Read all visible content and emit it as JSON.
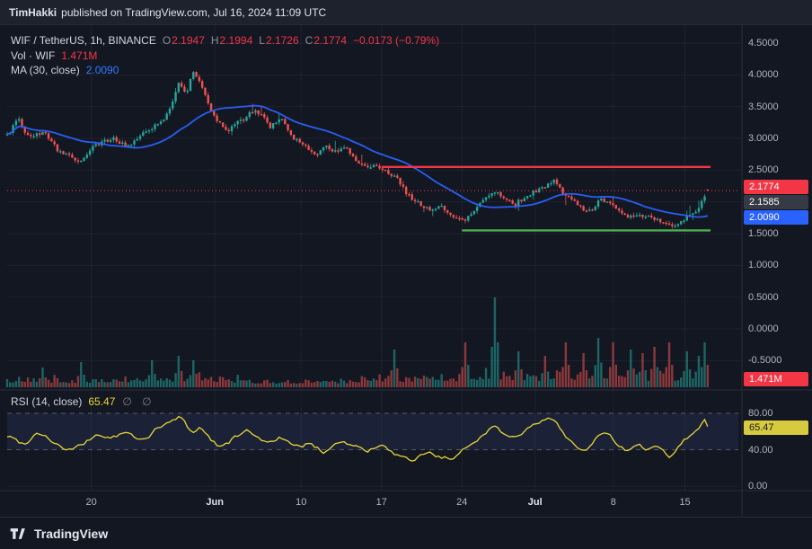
{
  "topbar": {
    "user": "TimHakki",
    "text": "published on TradingView.com, Jul 16, 2024 11:09 UTC"
  },
  "footer": {
    "brand": "TradingView"
  },
  "legend": {
    "symbol": "WIF / TetherUS, 1h, BINANCE",
    "ohlc": [
      {
        "k": "O",
        "v": "2.1947"
      },
      {
        "k": "H",
        "v": "2.1994"
      },
      {
        "k": "L",
        "v": "2.1726"
      },
      {
        "k": "C",
        "v": "2.1774"
      }
    ],
    "change": "−0.0173 (−0.79%)",
    "vol_label": "Vol · WIF",
    "vol_value": "1.471M",
    "ma_label": "MA (30, close)",
    "ma_value": "2.0090",
    "rsi_label": "RSI (14, close)",
    "rsi_value": "65.47",
    "rsi_icons": "∅ ∅"
  },
  "badges": {
    "last_price": "2.1774",
    "prev_price": "2.1585",
    "ma": "2.0090",
    "volume": "1.471M",
    "rsi": "65.47"
  },
  "axes": {
    "price_labels": [
      "4.5000",
      "4.0000",
      "3.5000",
      "3.0000",
      "2.5000",
      "2.0000",
      "1.5000",
      "1.0000",
      "0.5000",
      "0.0000",
      "-0.5000"
    ],
    "price_values": [
      4.5,
      4.0,
      3.5,
      3.0,
      2.5,
      2.0,
      1.5,
      1.0,
      0.5,
      0.0,
      -0.5
    ],
    "rsi_labels": [
      {
        "t": "80.00",
        "v": 80
      },
      {
        "t": "40.00",
        "v": 40
      },
      {
        "t": "0.00",
        "v": 0
      }
    ],
    "time_labels": [
      {
        "t": "20",
        "f": 0.115,
        "month": false
      },
      {
        "t": "Jun",
        "f": 0.284,
        "month": true
      },
      {
        "t": "10",
        "f": 0.402,
        "month": false
      },
      {
        "t": "17",
        "f": 0.512,
        "month": false
      },
      {
        "t": "24",
        "f": 0.622,
        "month": false
      },
      {
        "t": "Jul",
        "f": 0.722,
        "month": true
      },
      {
        "t": "8",
        "f": 0.829,
        "month": false
      },
      {
        "t": "15",
        "f": 0.927,
        "month": false
      }
    ]
  },
  "colors": {
    "up": "#26a69a",
    "down": "#ef5350",
    "accent_red": "#f23645",
    "ma_blue": "#2962ff",
    "support_green": "#4caf50",
    "rsi_yellow": "#e6d738",
    "badge_gray": "#363a45",
    "axis_text": "#b2b5be"
  },
  "chart_data": [
    {
      "type": "candlestick",
      "title": "WIF / TetherUS, 1h, BINANCE",
      "last_ohlc": {
        "open": 2.1947,
        "high": 2.1994,
        "low": 2.1726,
        "close": 2.1774,
        "change": -0.0173,
        "change_pct": -0.79
      },
      "ma": {
        "period": 30,
        "last": 2.009
      },
      "ylim": [
        -0.5,
        4.5
      ],
      "levels": {
        "resistance": {
          "price": 2.55,
          "from": 0.512,
          "to": 0.962
        },
        "support": {
          "price": 1.55,
          "from": 0.622,
          "to": 0.962
        },
        "price_line": 2.1774
      },
      "close_path_anchors": [
        [
          0,
          3.05
        ],
        [
          0.015,
          3.3
        ],
        [
          0.03,
          3.0
        ],
        [
          0.05,
          3.1
        ],
        [
          0.07,
          2.8
        ],
        [
          0.1,
          2.62
        ],
        [
          0.12,
          2.9
        ],
        [
          0.145,
          3.0
        ],
        [
          0.165,
          2.88
        ],
        [
          0.19,
          3.1
        ],
        [
          0.21,
          3.25
        ],
        [
          0.225,
          3.5
        ],
        [
          0.235,
          3.92
        ],
        [
          0.245,
          3.7
        ],
        [
          0.255,
          4.08
        ],
        [
          0.268,
          3.75
        ],
        [
          0.284,
          3.3
        ],
        [
          0.3,
          3.12
        ],
        [
          0.32,
          3.28
        ],
        [
          0.34,
          3.46
        ],
        [
          0.36,
          3.18
        ],
        [
          0.375,
          3.3
        ],
        [
          0.39,
          3.0
        ],
        [
          0.405,
          2.92
        ],
        [
          0.42,
          2.72
        ],
        [
          0.435,
          2.9
        ],
        [
          0.45,
          2.78
        ],
        [
          0.465,
          2.86
        ],
        [
          0.48,
          2.6
        ],
        [
          0.5,
          2.56
        ],
        [
          0.515,
          2.48
        ],
        [
          0.53,
          2.42
        ],
        [
          0.545,
          2.15
        ],
        [
          0.56,
          2.0
        ],
        [
          0.578,
          1.88
        ],
        [
          0.595,
          1.92
        ],
        [
          0.61,
          1.78
        ],
        [
          0.625,
          1.7
        ],
        [
          0.64,
          1.88
        ],
        [
          0.655,
          2.05
        ],
        [
          0.668,
          2.18
        ],
        [
          0.682,
          2.02
        ],
        [
          0.695,
          1.95
        ],
        [
          0.71,
          2.12
        ],
        [
          0.722,
          2.16
        ],
        [
          0.737,
          2.26
        ],
        [
          0.748,
          2.32
        ],
        [
          0.76,
          2.16
        ],
        [
          0.775,
          2.0
        ],
        [
          0.79,
          1.88
        ],
        [
          0.8,
          1.86
        ],
        [
          0.812,
          2.05
        ],
        [
          0.825,
          1.98
        ],
        [
          0.838,
          1.82
        ],
        [
          0.852,
          1.76
        ],
        [
          0.868,
          1.8
        ],
        [
          0.882,
          1.73
        ],
        [
          0.9,
          1.67
        ],
        [
          0.912,
          1.6
        ],
        [
          0.925,
          1.72
        ],
        [
          0.937,
          1.8
        ],
        [
          0.948,
          1.95
        ],
        [
          0.955,
          2.08
        ],
        [
          0.958,
          2.18
        ]
      ]
    },
    {
      "type": "bar",
      "name": "Volume WIF",
      "last_value": "1.471M",
      "envelope_anchors": [
        [
          0,
          0.18
        ],
        [
          0.1,
          0.15
        ],
        [
          0.2,
          0.2
        ],
        [
          0.26,
          0.22
        ],
        [
          0.35,
          0.12
        ],
        [
          0.45,
          0.12
        ],
        [
          0.52,
          0.2
        ],
        [
          0.6,
          0.18
        ],
        [
          0.665,
          0.3
        ],
        [
          0.72,
          0.2
        ],
        [
          0.78,
          0.25
        ],
        [
          0.85,
          0.25
        ],
        [
          0.92,
          0.22
        ],
        [
          0.958,
          0.3
        ]
      ],
      "spikes": [
        [
          0.05,
          0.22
        ],
        [
          0.1,
          0.28
        ],
        [
          0.2,
          0.3
        ],
        [
          0.235,
          0.35
        ],
        [
          0.255,
          0.3
        ],
        [
          0.53,
          0.42
        ],
        [
          0.625,
          0.5
        ],
        [
          0.665,
          1.0
        ],
        [
          0.7,
          0.4
        ],
        [
          0.735,
          0.35
        ],
        [
          0.765,
          0.5
        ],
        [
          0.79,
          0.38
        ],
        [
          0.81,
          0.55
        ],
        [
          0.83,
          0.5
        ],
        [
          0.852,
          0.42
        ],
        [
          0.87,
          0.38
        ],
        [
          0.887,
          0.45
        ],
        [
          0.905,
          0.5
        ],
        [
          0.93,
          0.4
        ],
        [
          0.945,
          0.35
        ],
        [
          0.955,
          0.5
        ]
      ]
    },
    {
      "type": "line",
      "name": "RSI (14, close)",
      "last_value": 65.47,
      "bands": [
        40,
        80
      ],
      "ylim": [
        0,
        100
      ],
      "anchors": [
        [
          0,
          55
        ],
        [
          0.02,
          45
        ],
        [
          0.04,
          62
        ],
        [
          0.06,
          48
        ],
        [
          0.08,
          38
        ],
        [
          0.1,
          45
        ],
        [
          0.12,
          58
        ],
        [
          0.14,
          52
        ],
        [
          0.16,
          60
        ],
        [
          0.18,
          48
        ],
        [
          0.2,
          63
        ],
        [
          0.22,
          70
        ],
        [
          0.235,
          78
        ],
        [
          0.25,
          55
        ],
        [
          0.262,
          68
        ],
        [
          0.275,
          50
        ],
        [
          0.29,
          42
        ],
        [
          0.31,
          55
        ],
        [
          0.33,
          62
        ],
        [
          0.35,
          45
        ],
        [
          0.37,
          56
        ],
        [
          0.39,
          40
        ],
        [
          0.41,
          48
        ],
        [
          0.43,
          35
        ],
        [
          0.45,
          52
        ],
        [
          0.47,
          44
        ],
        [
          0.49,
          38
        ],
        [
          0.51,
          45
        ],
        [
          0.53,
          32
        ],
        [
          0.55,
          26
        ],
        [
          0.57,
          38
        ],
        [
          0.59,
          32
        ],
        [
          0.61,
          28
        ],
        [
          0.63,
          48
        ],
        [
          0.65,
          58
        ],
        [
          0.665,
          70
        ],
        [
          0.68,
          52
        ],
        [
          0.7,
          60
        ],
        [
          0.715,
          66
        ],
        [
          0.73,
          72
        ],
        [
          0.745,
          75
        ],
        [
          0.76,
          55
        ],
        [
          0.775,
          42
        ],
        [
          0.79,
          38
        ],
        [
          0.805,
          55
        ],
        [
          0.818,
          60
        ],
        [
          0.83,
          46
        ],
        [
          0.845,
          36
        ],
        [
          0.86,
          45
        ],
        [
          0.875,
          40
        ],
        [
          0.89,
          44
        ],
        [
          0.905,
          30
        ],
        [
          0.92,
          52
        ],
        [
          0.935,
          58
        ],
        [
          0.945,
          65
        ],
        [
          0.952,
          82
        ],
        [
          0.956,
          74
        ],
        [
          0.958,
          65.47
        ]
      ]
    }
  ]
}
